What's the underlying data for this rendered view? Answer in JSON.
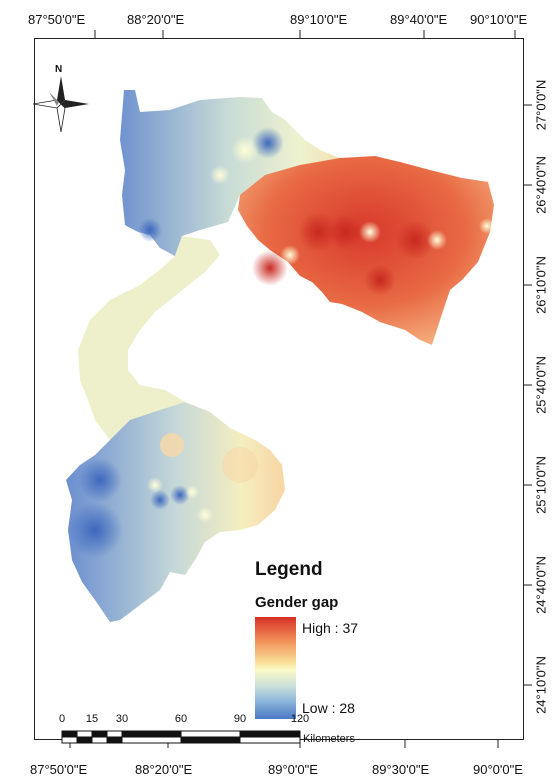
{
  "map": {
    "top_longitude_labels": [
      "87°50'0\"E",
      "88°20'0\"E",
      "89°10'0\"E",
      "89°40'0\"E",
      "90°10'0\"E"
    ],
    "bottom_longitude_labels": [
      "87°50'0\"E",
      "88°20'0\"E",
      "89°0'0\"E",
      "89°30'0\"E",
      "90°0'0\"E"
    ],
    "right_latitude_labels": [
      "27°0'0\"N",
      "26°40'0\"N",
      "26°10'0\"N",
      "25°40'0\"N",
      "25°10'0\"N",
      "24°40'0\"N",
      "24°10'0\"N"
    ],
    "north_arrow": {
      "letter": "N",
      "icon": "north-arrow-icon"
    }
  },
  "legend": {
    "title": "Legend",
    "subtitle": "Gender gap",
    "high_label": "High : 37",
    "low_label": "Low : 28",
    "high_value": 37,
    "low_value": 28,
    "high_color": "#d73027",
    "low_color": "#4a78c4"
  },
  "scalebar": {
    "ticks": [
      "0",
      "15",
      "30",
      "60",
      "90",
      "120"
    ],
    "unit": "Kilometers"
  }
}
